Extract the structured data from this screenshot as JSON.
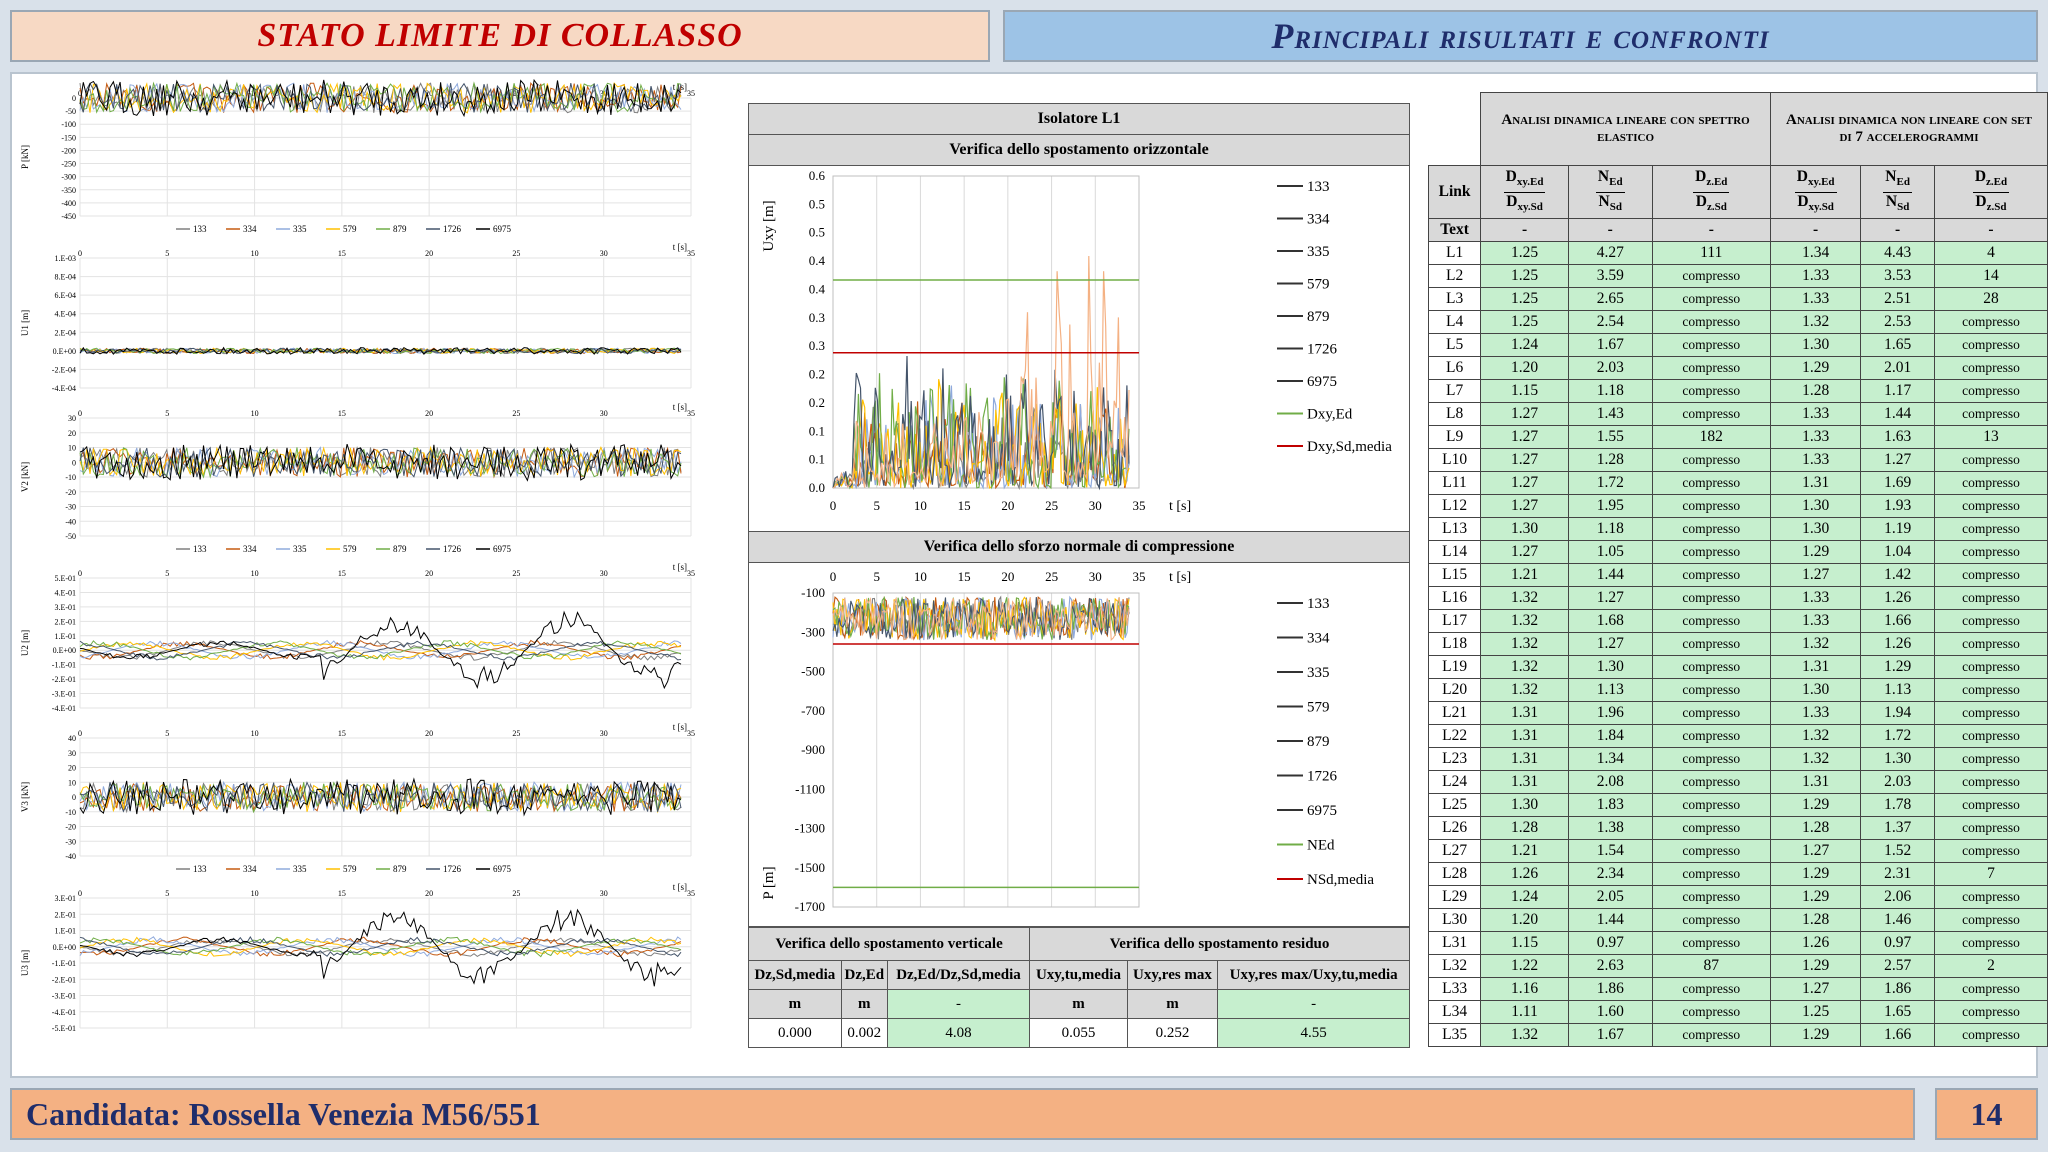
{
  "header": {
    "left_title": "STATO LIMITE DI COLLASSO",
    "right_title": "Principali risultati e confronti"
  },
  "footer": {
    "candidate": "Candidata: Rossella Venezia M56/551",
    "page": "14"
  },
  "left_plots": {
    "series_names": [
      "133",
      "334",
      "335",
      "579",
      "879",
      "1726",
      "6975"
    ],
    "series_colors": [
      "#7f7f7f",
      "#c55a11",
      "#8faadc",
      "#ffc000",
      "#70ad47",
      "#44546a",
      "#000000"
    ],
    "t_label": "t [s]",
    "x_ticks": [
      "0",
      "5",
      "10",
      "15",
      "20",
      "25",
      "30",
      "35"
    ],
    "panels": [
      {
        "ylabel": "P [kN]",
        "yticks": [
          "0",
          "-50",
          "-100",
          "-150",
          "-200",
          "-250",
          "-300",
          "-350",
          "-400",
          "-450"
        ],
        "legend": true
      },
      {
        "ylabel": "U1 [m]",
        "yticks": [
          "1.E-03",
          "8.E-04",
          "6.E-04",
          "4.E-04",
          "2.E-04",
          "0.E+00",
          "-2.E-04",
          "-4.E-04"
        ],
        "legend": false
      },
      {
        "ylabel": "V2 [kN]",
        "yticks": [
          "30",
          "20",
          "10",
          "0",
          "-10",
          "-20",
          "-30",
          "-40",
          "-50"
        ],
        "legend": true
      },
      {
        "ylabel": "U2 [m]",
        "yticks": [
          "5.E-01",
          "4.E-01",
          "3.E-01",
          "2.E-01",
          "1.E-01",
          "0.E+00",
          "-1.E-01",
          "-2.E-01",
          "-3.E-01",
          "-4.E-01"
        ],
        "legend": false
      },
      {
        "ylabel": "V3 [kN]",
        "yticks": [
          "40",
          "30",
          "20",
          "10",
          "0",
          "-10",
          "-20",
          "-30",
          "-40"
        ],
        "legend": true
      },
      {
        "ylabel": "U3 [m]",
        "yticks": [
          "3.E-01",
          "2.E-01",
          "1.E-01",
          "0.E+00",
          "-1.E-01",
          "-2.E-01",
          "-3.E-01",
          "-4.E-01",
          "-5.E-01"
        ],
        "legend": false
      }
    ]
  },
  "isolator": {
    "title": "Isolatore L1",
    "disp_title": "Verifica dello spostamento orizzontale",
    "disp_ylabel": "Uxy [m]",
    "disp_xlabel": "t [s]",
    "disp_yticks": [
      "0.6",
      "0.5",
      "0.5",
      "0.4",
      "0.4",
      "0.3",
      "0.3",
      "0.2",
      "0.2",
      "0.1",
      "0.1",
      "0.0"
    ],
    "disp_xticks": [
      "0",
      "5",
      "10",
      "15",
      "20",
      "25",
      "30",
      "35"
    ],
    "disp_legend": [
      "133",
      "334",
      "335",
      "579",
      "879",
      "1726",
      "6975",
      "Dxy,Ed",
      "Dxy,Sd,media"
    ],
    "legend_colors": [
      "#7f7f7f",
      "#c55a11",
      "#8faadc",
      "#ffc000",
      "#70ad47",
      "#44546a",
      "#f4b183",
      "#70ad47",
      "#c00000"
    ],
    "norm_title": "Verifica dello sforzo normale di compressione",
    "norm_ylabel": "P [m]",
    "norm_xlabel": "t [s]",
    "norm_yticks": [
      "-100",
      "-300",
      "-500",
      "-700",
      "-900",
      "-1100",
      "-1300",
      "-1500",
      "-1700"
    ],
    "norm_xticks": [
      "0",
      "5",
      "10",
      "15",
      "20",
      "25",
      "30",
      "35"
    ],
    "norm_legend": [
      "133",
      "334",
      "335",
      "579",
      "879",
      "1726",
      "6975",
      "NEd",
      "NSd,media"
    ]
  },
  "checks": {
    "vert_title": "Verifica dello spostamento verticale",
    "res_title": "Verifica dello spostamento residuo",
    "h1": "Dz,Sd,media",
    "h2": "Dz,Ed",
    "h3": "Dz,Ed/Dz,Sd,media",
    "h4": "Uxy,tu,media",
    "h5": "Uxy,res max",
    "h6": "Uxy,res max/Uxy,tu,media",
    "u1": "m",
    "u2": "m",
    "u3": "-",
    "u4": "m",
    "u5": "m",
    "u6": "-",
    "v1": "0.000",
    "v2": "0.002",
    "v3": "4.08",
    "v4": "0.055",
    "v5": "0.252",
    "v6": "4.55"
  },
  "results": {
    "group1": "Analisi dinamica lineare con spettro elastico",
    "group2": "Analisi dinamica non lineare con set di 7 accelerogrammi",
    "link_header": "Link",
    "text_row": [
      "Text",
      "-",
      "-",
      "-",
      "-",
      "-",
      "-"
    ],
    "rows": [
      [
        "L1",
        "1.25",
        "4.27",
        "111",
        "1.34",
        "4.43",
        "4"
      ],
      [
        "L2",
        "1.25",
        "3.59",
        "compresso",
        "1.33",
        "3.53",
        "14"
      ],
      [
        "L3",
        "1.25",
        "2.65",
        "compresso",
        "1.33",
        "2.51",
        "28"
      ],
      [
        "L4",
        "1.25",
        "2.54",
        "compresso",
        "1.32",
        "2.53",
        "compresso"
      ],
      [
        "L5",
        "1.24",
        "1.67",
        "compresso",
        "1.30",
        "1.65",
        "compresso"
      ],
      [
        "L6",
        "1.20",
        "2.03",
        "compresso",
        "1.29",
        "2.01",
        "compresso"
      ],
      [
        "L7",
        "1.15",
        "1.18",
        "compresso",
        "1.28",
        "1.17",
        "compresso"
      ],
      [
        "L8",
        "1.27",
        "1.43",
        "compresso",
        "1.33",
        "1.44",
        "compresso"
      ],
      [
        "L9",
        "1.27",
        "1.55",
        "182",
        "1.33",
        "1.63",
        "13"
      ],
      [
        "L10",
        "1.27",
        "1.28",
        "compresso",
        "1.33",
        "1.27",
        "compresso"
      ],
      [
        "L11",
        "1.27",
        "1.72",
        "compresso",
        "1.31",
        "1.69",
        "compresso"
      ],
      [
        "L12",
        "1.27",
        "1.95",
        "compresso",
        "1.30",
        "1.93",
        "compresso"
      ],
      [
        "L13",
        "1.30",
        "1.18",
        "compresso",
        "1.30",
        "1.19",
        "compresso"
      ],
      [
        "L14",
        "1.27",
        "1.05",
        "compresso",
        "1.29",
        "1.04",
        "compresso"
      ],
      [
        "L15",
        "1.21",
        "1.44",
        "compresso",
        "1.27",
        "1.42",
        "compresso"
      ],
      [
        "L16",
        "1.32",
        "1.27",
        "compresso",
        "1.33",
        "1.26",
        "compresso"
      ],
      [
        "L17",
        "1.32",
        "1.68",
        "compresso",
        "1.33",
        "1.66",
        "compresso"
      ],
      [
        "L18",
        "1.32",
        "1.27",
        "compresso",
        "1.32",
        "1.26",
        "compresso"
      ],
      [
        "L19",
        "1.32",
        "1.30",
        "compresso",
        "1.31",
        "1.29",
        "compresso"
      ],
      [
        "L20",
        "1.32",
        "1.13",
        "compresso",
        "1.30",
        "1.13",
        "compresso"
      ],
      [
        "L21",
        "1.31",
        "1.96",
        "compresso",
        "1.33",
        "1.94",
        "compresso"
      ],
      [
        "L22",
        "1.31",
        "1.84",
        "compresso",
        "1.32",
        "1.72",
        "compresso"
      ],
      [
        "L23",
        "1.31",
        "1.34",
        "compresso",
        "1.32",
        "1.30",
        "compresso"
      ],
      [
        "L24",
        "1.31",
        "2.08",
        "compresso",
        "1.31",
        "2.03",
        "compresso"
      ],
      [
        "L25",
        "1.30",
        "1.83",
        "compresso",
        "1.29",
        "1.78",
        "compresso"
      ],
      [
        "L26",
        "1.28",
        "1.38",
        "compresso",
        "1.28",
        "1.37",
        "compresso"
      ],
      [
        "L27",
        "1.21",
        "1.54",
        "compresso",
        "1.27",
        "1.52",
        "compresso"
      ],
      [
        "L28",
        "1.26",
        "2.34",
        "compresso",
        "1.29",
        "2.31",
        "7"
      ],
      [
        "L29",
        "1.24",
        "2.05",
        "compresso",
        "1.29",
        "2.06",
        "compresso"
      ],
      [
        "L30",
        "1.20",
        "1.44",
        "compresso",
        "1.28",
        "1.46",
        "compresso"
      ],
      [
        "L31",
        "1.15",
        "0.97",
        "compresso",
        "1.26",
        "0.97",
        "compresso"
      ],
      [
        "L32",
        "1.22",
        "2.63",
        "87",
        "1.29",
        "2.57",
        "2"
      ],
      [
        "L33",
        "1.16",
        "1.86",
        "compresso",
        "1.27",
        "1.86",
        "compresso"
      ],
      [
        "L34",
        "1.11",
        "1.60",
        "compresso",
        "1.25",
        "1.65",
        "compresso"
      ],
      [
        "L35",
        "1.32",
        "1.67",
        "compresso",
        "1.29",
        "1.66",
        "compresso"
      ]
    ]
  }
}
